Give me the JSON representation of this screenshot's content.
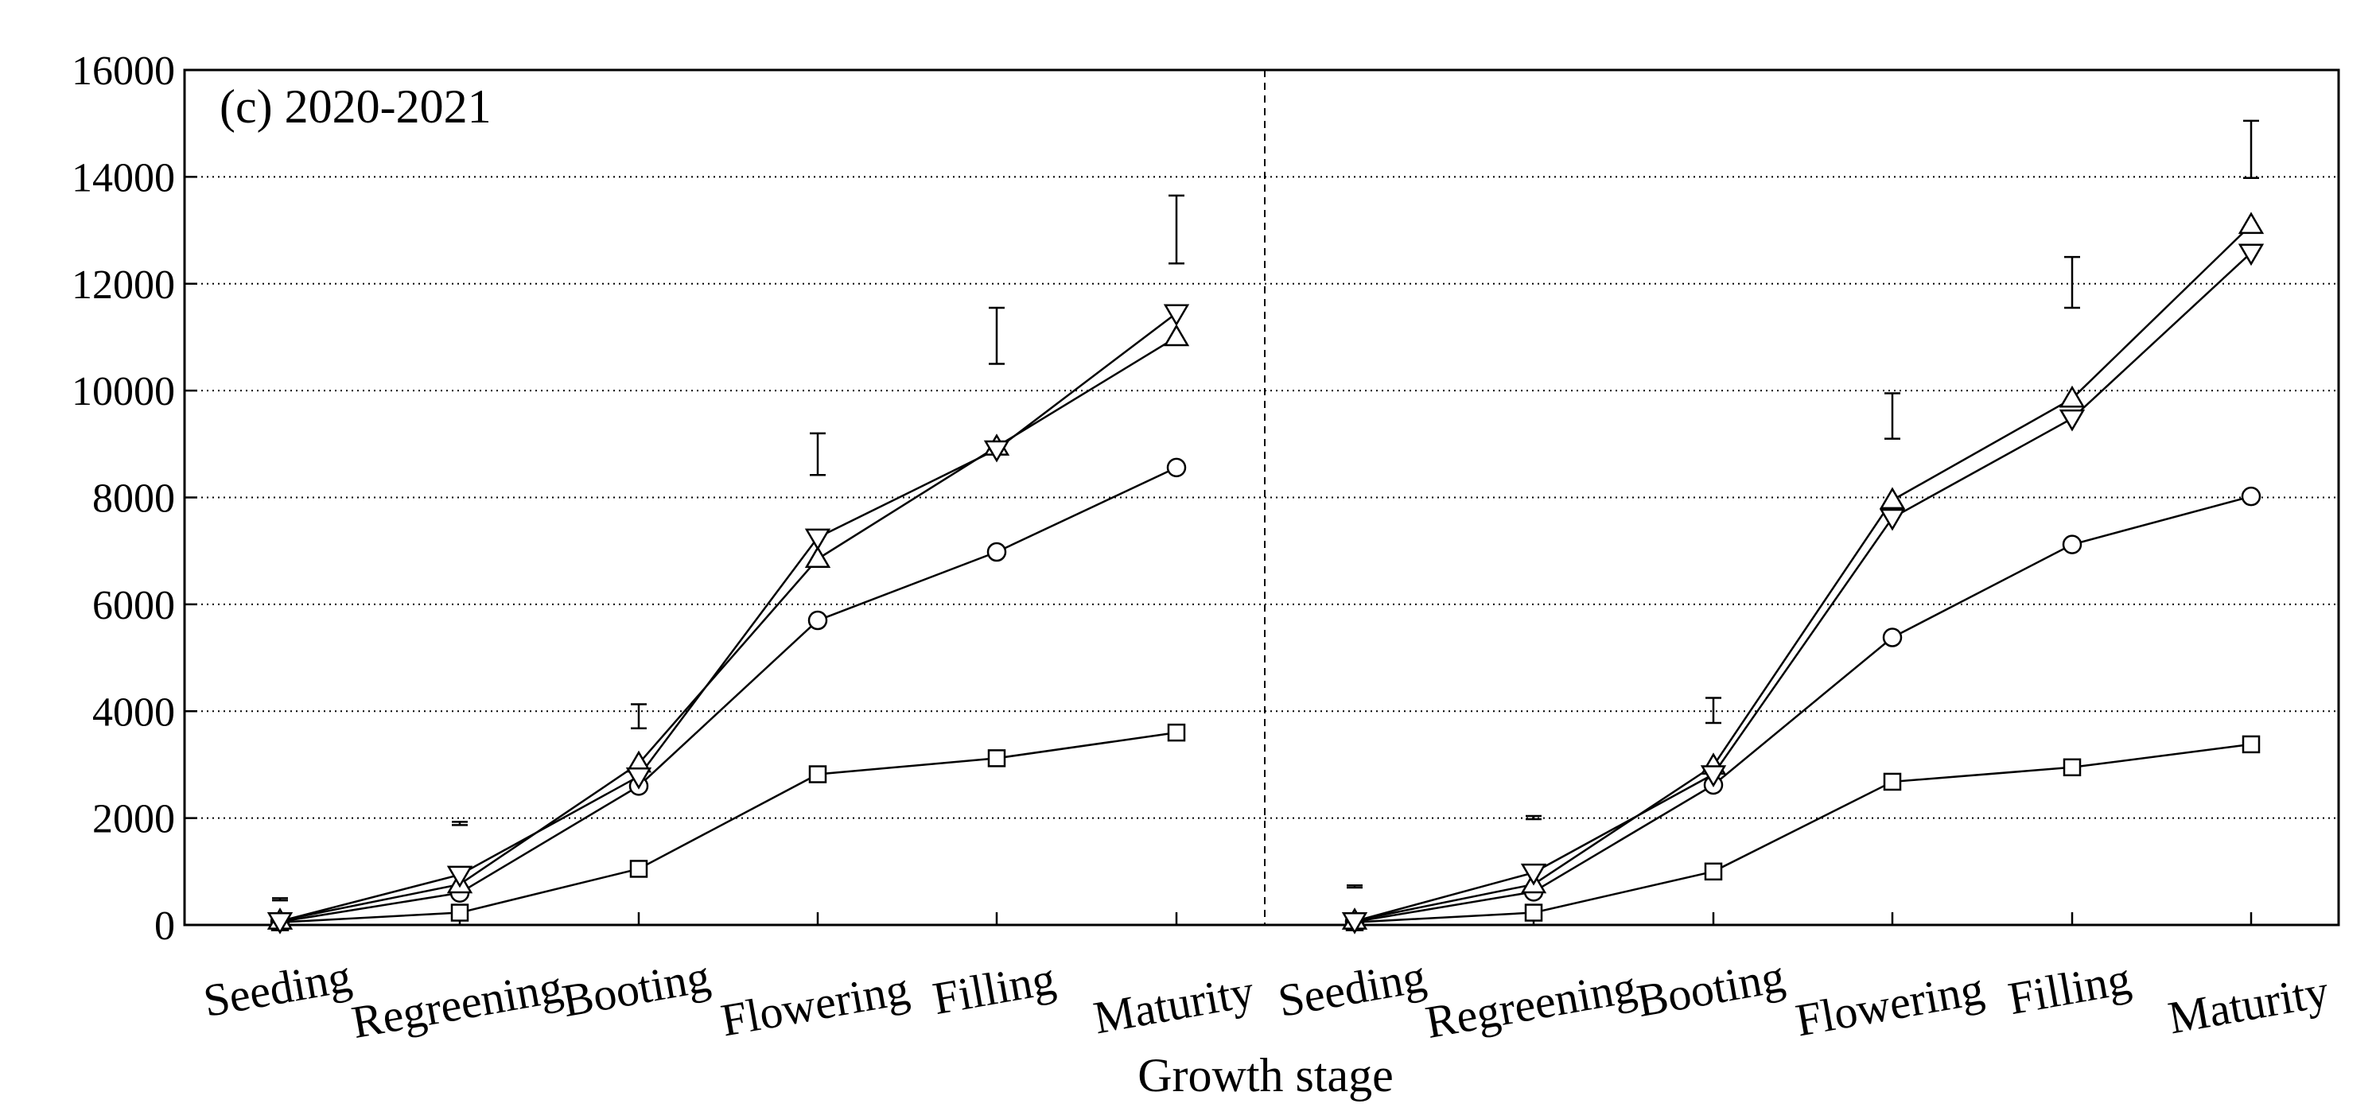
{
  "chart_data": {
    "type": "line",
    "panel_label": "(c) 2020-2021",
    "xlabel": "Growth stage",
    "ylabel": "",
    "ylim": [
      0,
      16000
    ],
    "yticks": [
      0,
      2000,
      4000,
      6000,
      8000,
      10000,
      12000,
      14000,
      16000
    ],
    "grid": "horizontal dotted",
    "categories": [
      "Seeding",
      "Regreening",
      "Booting",
      "Flowering",
      "Filling",
      "Maturity"
    ],
    "panels": [
      {
        "series": [
          {
            "marker": "square",
            "values": [
              50,
              230,
              1050,
              2820,
              3120,
              3600
            ]
          },
          {
            "marker": "circle",
            "values": [
              60,
              600,
              2600,
              5700,
              6980,
              8560
            ]
          },
          {
            "marker": "triangle-up",
            "values": [
              80,
              760,
              3020,
              6850,
              8950,
              11000
            ]
          },
          {
            "marker": "triangle-down",
            "values": [
              70,
              940,
              2780,
              7250,
              8900,
              11450
            ]
          }
        ],
        "error_bars": [
          {
            "center": 480,
            "low": 460,
            "high": 500
          },
          {
            "center": 1900,
            "low": 1870,
            "high": 1930
          },
          {
            "center": 3900,
            "low": 3680,
            "high": 4130
          },
          {
            "center": 8800,
            "low": 8420,
            "high": 9200
          },
          {
            "center": 11000,
            "low": 10500,
            "high": 11550
          },
          {
            "center": 13000,
            "low": 12380,
            "high": 13650
          }
        ]
      },
      {
        "series": [
          {
            "marker": "square",
            "values": [
              50,
              230,
              1000,
              2680,
              2950,
              3380
            ]
          },
          {
            "marker": "circle",
            "values": [
              60,
              620,
              2620,
              5380,
              7120,
              8020
            ]
          },
          {
            "marker": "triangle-up",
            "values": [
              80,
              760,
              2980,
              7950,
              9850,
              13100
            ]
          },
          {
            "marker": "triangle-down",
            "values": [
              70,
              980,
              2820,
              7620,
              9480,
              12580
            ]
          }
        ],
        "error_bars": [
          {
            "center": 720,
            "low": 700,
            "high": 740
          },
          {
            "center": 2010,
            "low": 1980,
            "high": 2040
          },
          {
            "center": 4010,
            "low": 3780,
            "high": 4250
          },
          {
            "center": 9520,
            "low": 9100,
            "high": 9950
          },
          {
            "center": 12020,
            "low": 11550,
            "high": 12500
          },
          {
            "center": 14520,
            "low": 13980,
            "high": 15050
          }
        ]
      }
    ]
  }
}
